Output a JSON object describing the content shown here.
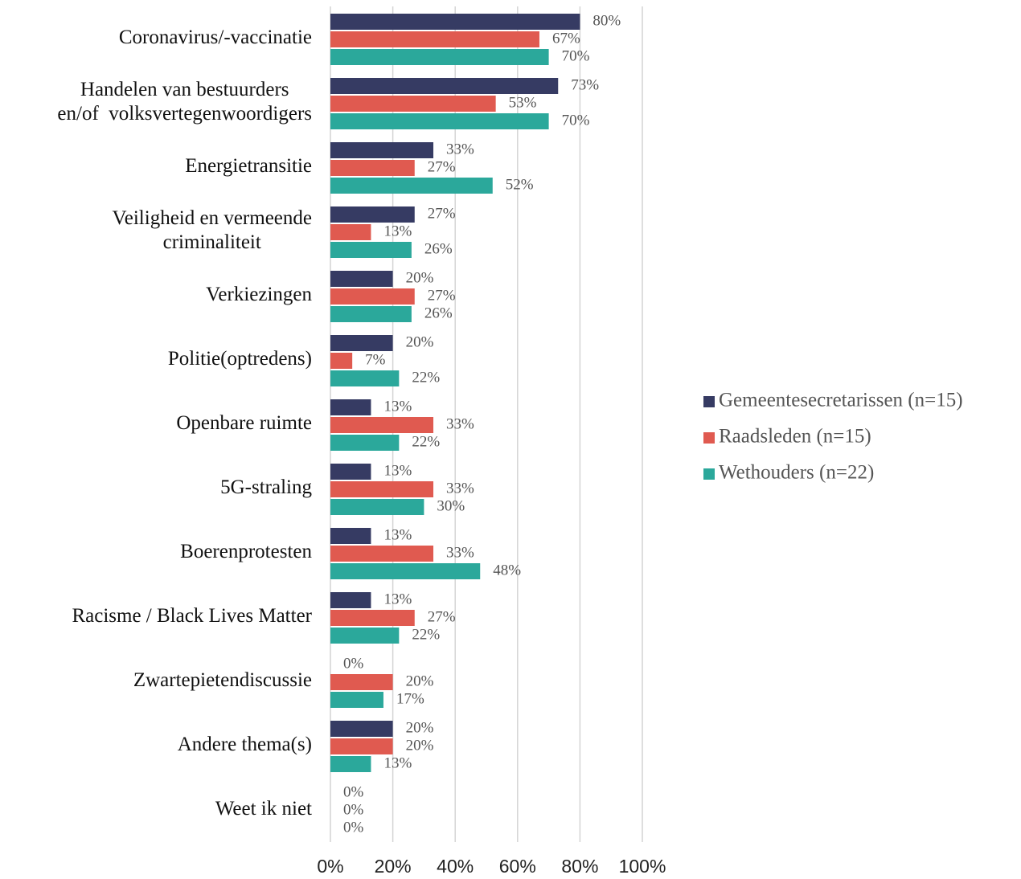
{
  "chart_data": {
    "type": "hbar",
    "categories": [
      "Coronavirus/-vaccinatie",
      "Handelen van bestuurders\nen/of  volksvertegenwoordigers",
      "Energietransitie",
      "Veiligheid en vermeende\ncriminaliteit",
      "Verkiezingen",
      "Politie(optredens)",
      "Openbare ruimte",
      "5G-straling",
      "Boerenprotesten",
      "Racisme / Black Lives Matter",
      "Zwartepietendiscussie",
      "Andere thema(s)",
      "Weet ik niet"
    ],
    "series": [
      {
        "name": "Gemeentesecretarissen (n=15)",
        "color": "#363b63",
        "values": [
          80,
          73,
          33,
          27,
          20,
          20,
          13,
          13,
          13,
          13,
          0,
          20,
          0
        ],
        "value_labels": [
          "80%",
          "73%",
          "33%",
          "27%",
          "20%",
          "20%",
          "13%",
          "13%",
          "13%",
          "13%",
          "0%",
          "20%",
          "0%"
        ]
      },
      {
        "name": "Raadsleden (n=15)",
        "color": "#e05a50",
        "values": [
          67,
          53,
          27,
          13,
          27,
          7,
          33,
          33,
          33,
          27,
          20,
          20,
          0
        ],
        "value_labels": [
          "67%",
          "53%",
          "27%",
          "13%",
          "27%",
          "7%",
          "33%",
          "33%",
          "33%",
          "27%",
          "20%",
          "20%",
          "0%"
        ]
      },
      {
        "name": "Wethouders (n=22)",
        "color": "#2ba89b",
        "values": [
          70,
          70,
          52,
          26,
          26,
          22,
          22,
          30,
          48,
          22,
          17,
          13,
          0
        ],
        "value_labels": [
          "70%",
          "70%",
          "52%",
          "26%",
          "26%",
          "22%",
          "22%",
          "30%",
          "48%",
          "22%",
          "17%",
          "13%",
          "0%"
        ]
      }
    ],
    "xlim": [
      0,
      100
    ],
    "xticks": [
      {
        "value": 0,
        "label": "0%"
      },
      {
        "value": 20,
        "label": "20%"
      },
      {
        "value": 40,
        "label": "40%"
      },
      {
        "value": 60,
        "label": "60%"
      },
      {
        "value": 80,
        "label": "80%"
      },
      {
        "value": 100,
        "label": "100%"
      }
    ],
    "grid": true,
    "legend": "right"
  }
}
